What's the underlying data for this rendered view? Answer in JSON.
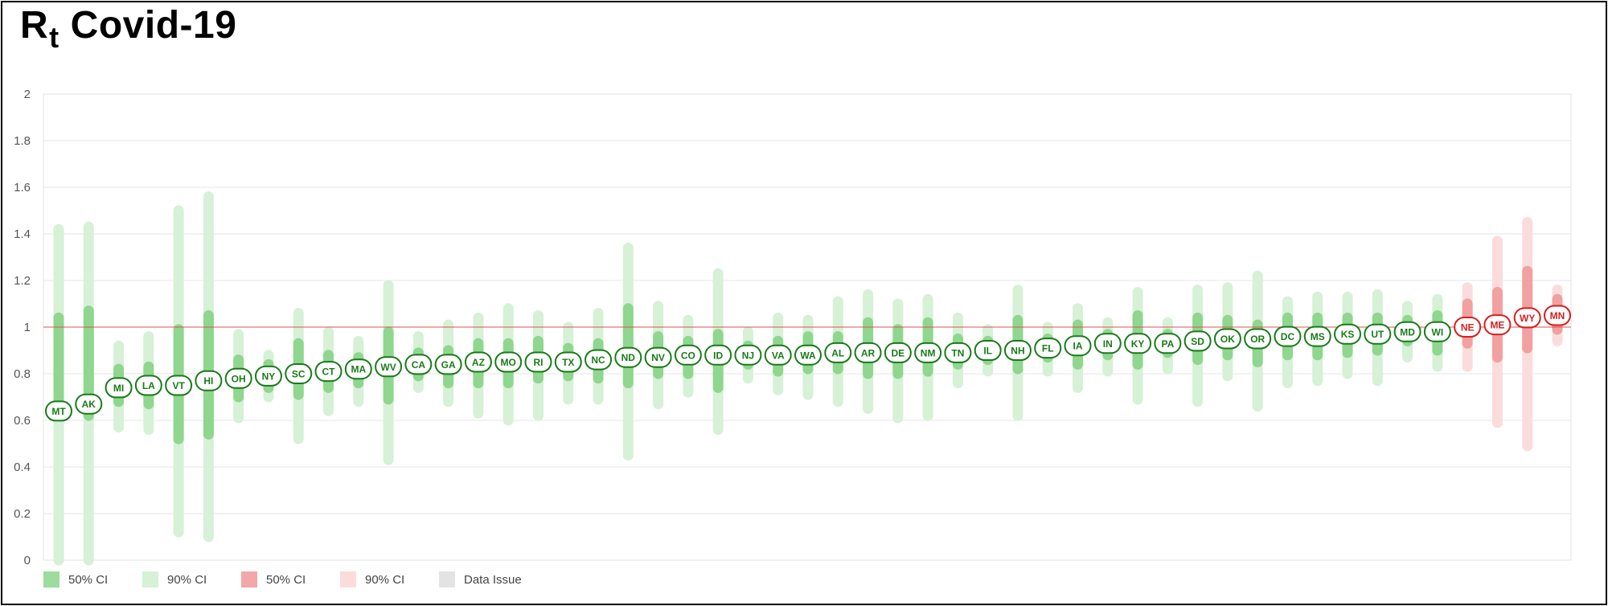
{
  "title": {
    "main": "R",
    "sub": "t",
    "rest": "Covid-19"
  },
  "colors": {
    "green_label": "#1a7a1a",
    "green_50": "#8fd68f",
    "green_90": "#d6f1d6",
    "red_label": "#d81f1f",
    "red_50": "#f2a0a0",
    "red_90": "#fbdcdc",
    "data_issue": "#e3e3e3",
    "ref_line": "#e05050",
    "grid": "#e6e6e6"
  },
  "legend": [
    {
      "label": "50% CI",
      "color": "#9ddc9d"
    },
    {
      "label": "90% CI",
      "color": "#d6f1d6"
    },
    {
      "label": "50% CI",
      "color": "#f2a8a8"
    },
    {
      "label": "90% CI",
      "color": "#fbdcdc"
    },
    {
      "label": "Data Issue",
      "color": "#e3e3e3"
    }
  ],
  "chart_data": {
    "type": "scatter",
    "title": "Rt Covid-19",
    "ylim": [
      0,
      2
    ],
    "yticks": [
      "0",
      "0.2",
      "0.4",
      "0.6",
      "0.8",
      "1",
      "1.2",
      "1.4",
      "1.6",
      "1.8",
      "2"
    ],
    "reference_line": 1,
    "grid": true,
    "legend_position": "bottom-left",
    "points": [
      {
        "state": "MT",
        "rt": 0.64,
        "ci50": [
          0.62,
          1.04
        ],
        "ci90": [
          0.0,
          1.42
        ],
        "status": "green"
      },
      {
        "state": "AK",
        "rt": 0.67,
        "ci50": [
          0.62,
          1.07
        ],
        "ci90": [
          0.0,
          1.43
        ],
        "status": "green"
      },
      {
        "state": "MI",
        "rt": 0.74,
        "ci50": [
          0.68,
          0.82
        ],
        "ci90": [
          0.57,
          0.92
        ],
        "status": "green"
      },
      {
        "state": "LA",
        "rt": 0.75,
        "ci50": [
          0.67,
          0.83
        ],
        "ci90": [
          0.56,
          0.96
        ],
        "status": "green"
      },
      {
        "state": "VT",
        "rt": 0.75,
        "ci50": [
          0.52,
          0.99
        ],
        "ci90": [
          0.12,
          1.5
        ],
        "status": "green"
      },
      {
        "state": "HI",
        "rt": 0.77,
        "ci50": [
          0.54,
          1.05
        ],
        "ci90": [
          0.1,
          1.56
        ],
        "status": "green"
      },
      {
        "state": "OH",
        "rt": 0.78,
        "ci50": [
          0.7,
          0.86
        ],
        "ci90": [
          0.61,
          0.97
        ],
        "status": "green"
      },
      {
        "state": "NY",
        "rt": 0.79,
        "ci50": [
          0.74,
          0.84
        ],
        "ci90": [
          0.7,
          0.88
        ],
        "status": "green"
      },
      {
        "state": "SC",
        "rt": 0.8,
        "ci50": [
          0.71,
          0.93
        ],
        "ci90": [
          0.52,
          1.06
        ],
        "status": "green"
      },
      {
        "state": "CT",
        "rt": 0.81,
        "ci50": [
          0.74,
          0.88
        ],
        "ci90": [
          0.64,
          0.98
        ],
        "status": "green"
      },
      {
        "state": "MA",
        "rt": 0.82,
        "ci50": [
          0.76,
          0.87
        ],
        "ci90": [
          0.68,
          0.94
        ],
        "status": "green"
      },
      {
        "state": "WV",
        "rt": 0.83,
        "ci50": [
          0.69,
          0.98
        ],
        "ci90": [
          0.43,
          1.18
        ],
        "status": "green"
      },
      {
        "state": "CA",
        "rt": 0.84,
        "ci50": [
          0.79,
          0.89
        ],
        "ci90": [
          0.74,
          0.96
        ],
        "status": "green"
      },
      {
        "state": "GA",
        "rt": 0.84,
        "ci50": [
          0.76,
          0.9
        ],
        "ci90": [
          0.68,
          1.01
        ],
        "status": "green"
      },
      {
        "state": "AZ",
        "rt": 0.85,
        "ci50": [
          0.76,
          0.93
        ],
        "ci90": [
          0.63,
          1.04
        ],
        "status": "green"
      },
      {
        "state": "MO",
        "rt": 0.85,
        "ci50": [
          0.76,
          0.93
        ],
        "ci90": [
          0.6,
          1.08
        ],
        "status": "green"
      },
      {
        "state": "RI",
        "rt": 0.85,
        "ci50": [
          0.78,
          0.94
        ],
        "ci90": [
          0.62,
          1.05
        ],
        "status": "green"
      },
      {
        "state": "TX",
        "rt": 0.85,
        "ci50": [
          0.79,
          0.91
        ],
        "ci90": [
          0.69,
          1.0
        ],
        "status": "green"
      },
      {
        "state": "NC",
        "rt": 0.86,
        "ci50": [
          0.78,
          0.93
        ],
        "ci90": [
          0.69,
          1.06
        ],
        "status": "green"
      },
      {
        "state": "ND",
        "rt": 0.87,
        "ci50": [
          0.76,
          1.08
        ],
        "ci90": [
          0.45,
          1.34
        ],
        "status": "green"
      },
      {
        "state": "NV",
        "rt": 0.87,
        "ci50": [
          0.8,
          0.96
        ],
        "ci90": [
          0.67,
          1.09
        ],
        "status": "green"
      },
      {
        "state": "CO",
        "rt": 0.88,
        "ci50": [
          0.8,
          0.94
        ],
        "ci90": [
          0.72,
          1.03
        ],
        "status": "green"
      },
      {
        "state": "ID",
        "rt": 0.88,
        "ci50": [
          0.74,
          0.97
        ],
        "ci90": [
          0.56,
          1.23
        ],
        "status": "green"
      },
      {
        "state": "NJ",
        "rt": 0.88,
        "ci50": [
          0.84,
          0.92
        ],
        "ci90": [
          0.78,
          0.98
        ],
        "status": "green"
      },
      {
        "state": "VA",
        "rt": 0.88,
        "ci50": [
          0.81,
          0.94
        ],
        "ci90": [
          0.73,
          1.04
        ],
        "status": "green"
      },
      {
        "state": "WA",
        "rt": 0.88,
        "ci50": [
          0.82,
          0.96
        ],
        "ci90": [
          0.71,
          1.03
        ],
        "status": "green"
      },
      {
        "state": "AL",
        "rt": 0.89,
        "ci50": [
          0.82,
          0.96
        ],
        "ci90": [
          0.68,
          1.11
        ],
        "status": "green"
      },
      {
        "state": "AR",
        "rt": 0.89,
        "ci50": [
          0.8,
          1.02
        ],
        "ci90": [
          0.65,
          1.14
        ],
        "status": "green"
      },
      {
        "state": "DE",
        "rt": 0.89,
        "ci50": [
          0.8,
          0.99
        ],
        "ci90": [
          0.61,
          1.1
        ],
        "status": "green"
      },
      {
        "state": "NM",
        "rt": 0.89,
        "ci50": [
          0.81,
          1.02
        ],
        "ci90": [
          0.62,
          1.12
        ],
        "status": "green"
      },
      {
        "state": "TN",
        "rt": 0.89,
        "ci50": [
          0.84,
          0.95
        ],
        "ci90": [
          0.76,
          1.04
        ],
        "status": "green"
      },
      {
        "state": "IL",
        "rt": 0.9,
        "ci50": [
          0.86,
          0.94
        ],
        "ci90": [
          0.81,
          0.99
        ],
        "status": "green"
      },
      {
        "state": "NH",
        "rt": 0.9,
        "ci50": [
          0.82,
          1.03
        ],
        "ci90": [
          0.62,
          1.16
        ],
        "status": "green"
      },
      {
        "state": "FL",
        "rt": 0.91,
        "ci50": [
          0.87,
          0.95
        ],
        "ci90": [
          0.81,
          1.0
        ],
        "status": "green"
      },
      {
        "state": "IA",
        "rt": 0.92,
        "ci50": [
          0.84,
          1.01
        ],
        "ci90": [
          0.74,
          1.08
        ],
        "status": "green"
      },
      {
        "state": "IN",
        "rt": 0.93,
        "ci50": [
          0.88,
          0.97
        ],
        "ci90": [
          0.81,
          1.02
        ],
        "status": "green"
      },
      {
        "state": "KY",
        "rt": 0.93,
        "ci50": [
          0.84,
          1.05
        ],
        "ci90": [
          0.69,
          1.15
        ],
        "status": "green"
      },
      {
        "state": "PA",
        "rt": 0.93,
        "ci50": [
          0.89,
          0.97
        ],
        "ci90": [
          0.82,
          1.02
        ],
        "status": "green"
      },
      {
        "state": "SD",
        "rt": 0.94,
        "ci50": [
          0.86,
          1.04
        ],
        "ci90": [
          0.68,
          1.16
        ],
        "status": "green"
      },
      {
        "state": "OK",
        "rt": 0.95,
        "ci50": [
          0.88,
          1.03
        ],
        "ci90": [
          0.79,
          1.17
        ],
        "status": "green"
      },
      {
        "state": "OR",
        "rt": 0.95,
        "ci50": [
          0.85,
          1.01
        ],
        "ci90": [
          0.66,
          1.22
        ],
        "status": "green"
      },
      {
        "state": "DC",
        "rt": 0.96,
        "ci50": [
          0.88,
          1.04
        ],
        "ci90": [
          0.76,
          1.11
        ],
        "status": "green"
      },
      {
        "state": "MS",
        "rt": 0.96,
        "ci50": [
          0.88,
          1.04
        ],
        "ci90": [
          0.77,
          1.13
        ],
        "status": "green"
      },
      {
        "state": "KS",
        "rt": 0.97,
        "ci50": [
          0.89,
          1.04
        ],
        "ci90": [
          0.8,
          1.13
        ],
        "status": "green"
      },
      {
        "state": "UT",
        "rt": 0.97,
        "ci50": [
          0.9,
          1.04
        ],
        "ci90": [
          0.77,
          1.14
        ],
        "status": "green"
      },
      {
        "state": "MD",
        "rt": 0.98,
        "ci50": [
          0.94,
          1.03
        ],
        "ci90": [
          0.87,
          1.09
        ],
        "status": "green"
      },
      {
        "state": "WI",
        "rt": 0.98,
        "ci50": [
          0.9,
          1.05
        ],
        "ci90": [
          0.83,
          1.12
        ],
        "status": "green"
      },
      {
        "state": "NE",
        "rt": 1.0,
        "ci50": [
          0.93,
          1.1
        ],
        "ci90": [
          0.83,
          1.17
        ],
        "status": "red"
      },
      {
        "state": "ME",
        "rt": 1.01,
        "ci50": [
          0.87,
          1.15
        ],
        "ci90": [
          0.59,
          1.37
        ],
        "status": "red"
      },
      {
        "state": "WY",
        "rt": 1.04,
        "ci50": [
          0.91,
          1.24
        ],
        "ci90": [
          0.49,
          1.45
        ],
        "status": "red"
      },
      {
        "state": "MN",
        "rt": 1.05,
        "ci50": [
          0.99,
          1.12
        ],
        "ci90": [
          0.94,
          1.16
        ],
        "status": "red"
      }
    ]
  }
}
